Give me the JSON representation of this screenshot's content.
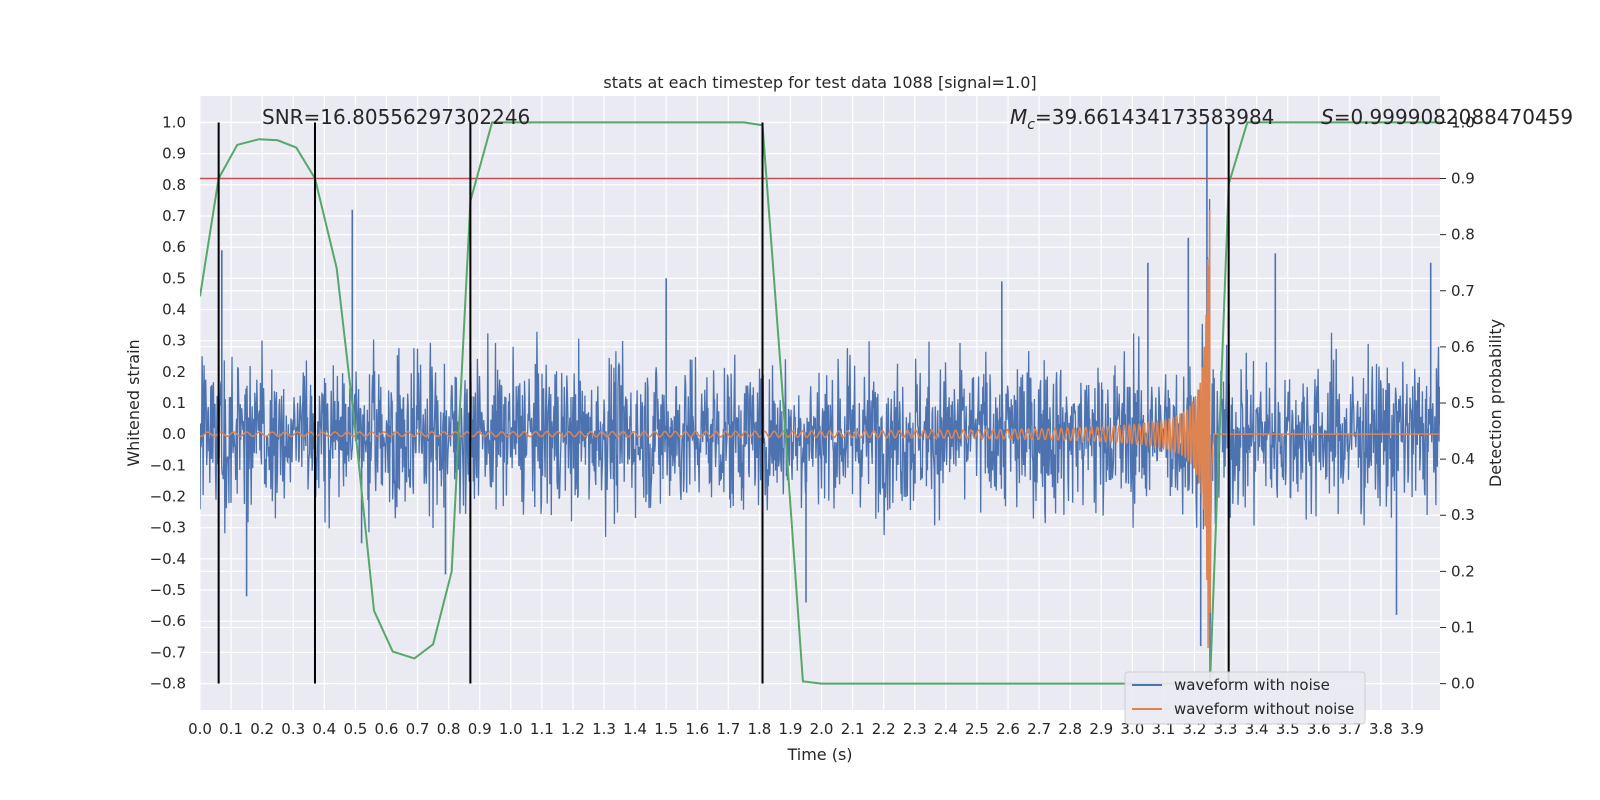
{
  "chart_data": {
    "type": "line",
    "title": "stats at each timestep for test data 1088 [signal=1.0]",
    "xlabel": "Time (s)",
    "ylabel_left": "Whitened strain",
    "ylabel_right": "Detection probability",
    "xlim": [
      0.0,
      3.99
    ],
    "ylim_left": [
      -0.885,
      1.085
    ],
    "ylim_right": [
      -0.047,
      1.047
    ],
    "x_ticks": [
      "0.0",
      "0.1",
      "0.2",
      "0.3",
      "0.4",
      "0.5",
      "0.6",
      "0.7",
      "0.8",
      "0.9",
      "1.0",
      "1.1",
      "1.2",
      "1.3",
      "1.4",
      "1.5",
      "1.6",
      "1.7",
      "1.8",
      "1.9",
      "2.0",
      "2.1",
      "2.2",
      "2.3",
      "2.4",
      "2.5",
      "2.6",
      "2.7",
      "2.8",
      "2.9",
      "3.0",
      "3.1",
      "3.2",
      "3.3",
      "3.4",
      "3.5",
      "3.6",
      "3.7",
      "3.8",
      "3.9"
    ],
    "y_left_ticks": [
      "1.0",
      "0.9",
      "0.8",
      "0.7",
      "0.6",
      "0.5",
      "0.4",
      "0.3",
      "0.2",
      "0.1",
      "0.0",
      "−0.1",
      "−0.2",
      "−0.3",
      "−0.4",
      "−0.5",
      "−0.6",
      "−0.7",
      "−0.8"
    ],
    "y_right_ticks": [
      "1.0",
      "0.9",
      "0.8",
      "0.7",
      "0.6",
      "0.5",
      "0.4",
      "0.3",
      "0.2",
      "0.1",
      "0.0"
    ],
    "annotations": {
      "snr": "SNR=16.80556297302246",
      "mc_symbol": "M",
      "mc_sub": "c",
      "mc_value": "=39.661434173583984",
      "s_symbol": "S",
      "s_value": "=0.9999082088470459"
    },
    "threshold_line": {
      "y_right": 0.9,
      "color": "#c44e52"
    },
    "vertical_markers_x": [
      0.06,
      0.37,
      0.87,
      1.81,
      3.31
    ],
    "detection_probability": {
      "color": "#55a868",
      "points": [
        [
          0.0,
          0.69
        ],
        [
          0.06,
          0.9
        ],
        [
          0.12,
          0.96
        ],
        [
          0.19,
          0.97
        ],
        [
          0.25,
          0.968
        ],
        [
          0.31,
          0.955
        ],
        [
          0.37,
          0.9
        ],
        [
          0.44,
          0.74
        ],
        [
          0.5,
          0.45
        ],
        [
          0.56,
          0.13
        ],
        [
          0.62,
          0.057
        ],
        [
          0.69,
          0.045
        ],
        [
          0.75,
          0.07
        ],
        [
          0.81,
          0.2
        ],
        [
          0.87,
          0.86
        ],
        [
          0.94,
          1.0
        ],
        [
          1.0,
          1.0
        ],
        [
          1.75,
          1.0
        ],
        [
          1.81,
          0.995
        ],
        [
          1.87,
          0.55
        ],
        [
          1.94,
          0.004
        ],
        [
          2.0,
          0.0
        ],
        [
          3.25,
          0.0
        ],
        [
          3.31,
          0.89
        ],
        [
          3.37,
          1.0
        ],
        [
          3.99,
          1.0
        ]
      ]
    },
    "series": [
      {
        "name": "waveform with noise",
        "color": "#4c72b0"
      },
      {
        "name": "waveform without noise",
        "color": "#dd8452"
      }
    ],
    "noisy_waveform": {
      "noise_amplitude": 0.17,
      "spikes": [
        [
          0.07,
          0.59
        ],
        [
          0.49,
          0.72
        ],
        [
          0.52,
          -0.35
        ],
        [
          1.5,
          0.5
        ],
        [
          1.95,
          -0.54
        ],
        [
          2.58,
          0.49
        ],
        [
          3.05,
          0.55
        ],
        [
          3.18,
          0.63
        ],
        [
          3.22,
          -0.68
        ],
        [
          3.24,
          1.0
        ],
        [
          3.25,
          -0.78
        ],
        [
          3.46,
          0.58
        ],
        [
          3.85,
          -0.58
        ],
        [
          3.96,
          0.55
        ],
        [
          0.15,
          -0.52
        ],
        [
          0.79,
          -0.45
        ]
      ]
    },
    "clean_waveform": {
      "merger_time": 3.25,
      "peak_amplitude": 0.72,
      "start_amplitude": 0.004
    },
    "legend_position": "lower-right",
    "grid": true
  }
}
